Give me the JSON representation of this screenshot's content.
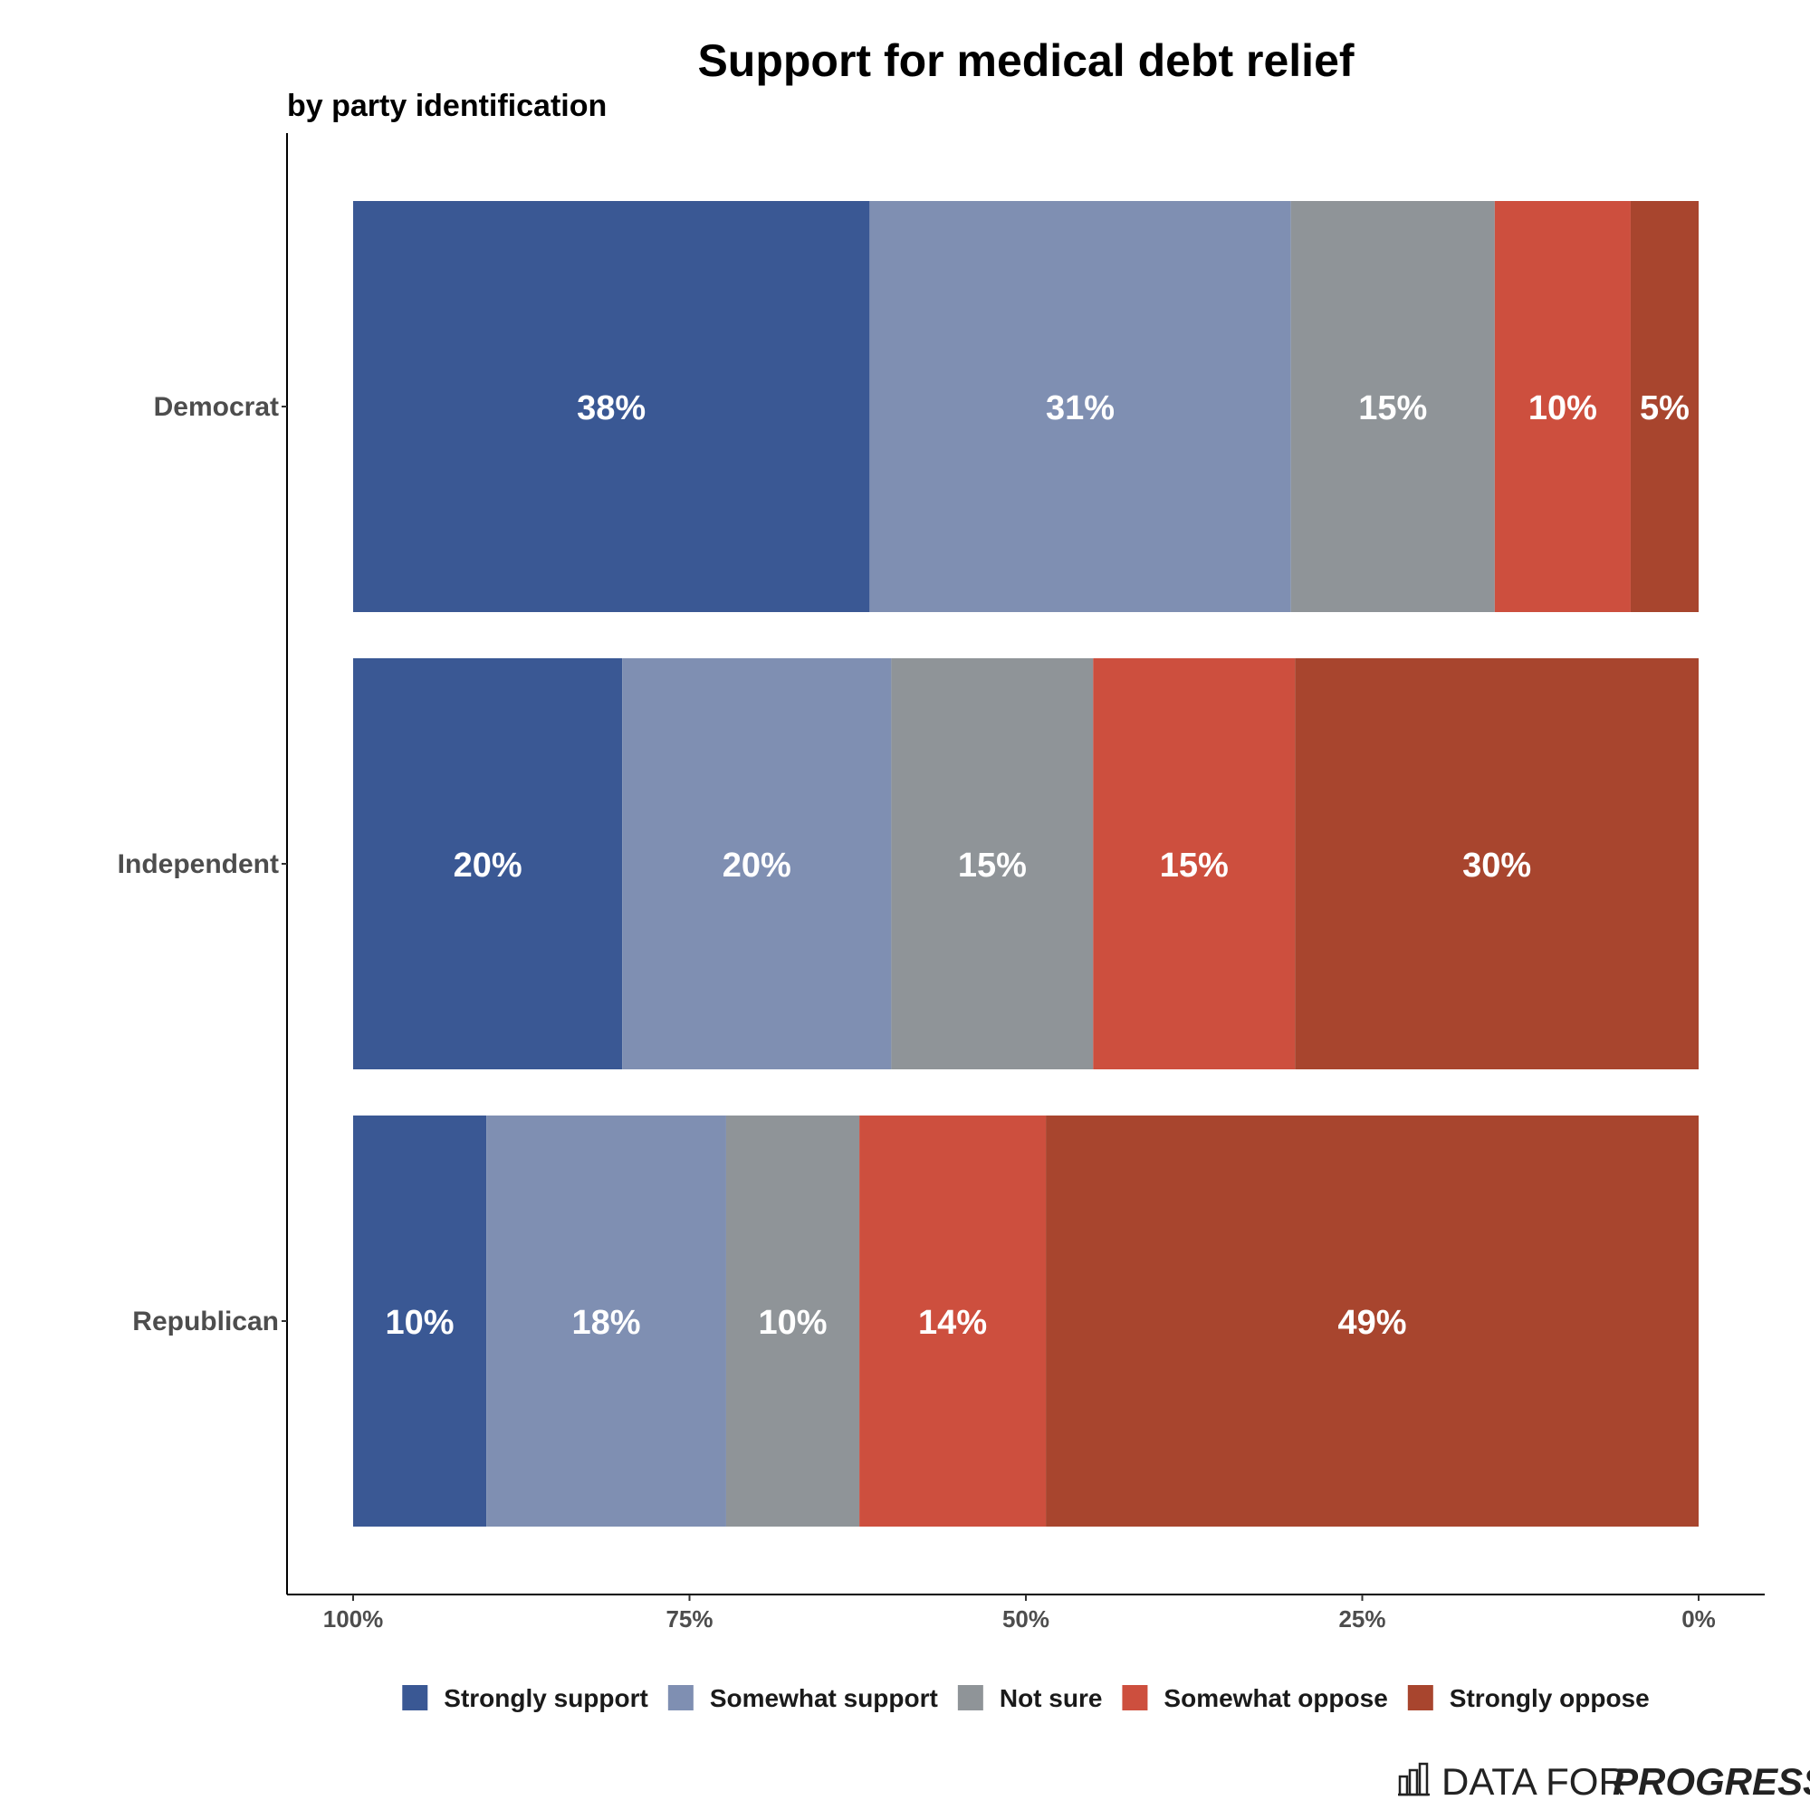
{
  "chart_data": {
    "type": "bar",
    "orientation": "horizontal",
    "stacked": true,
    "title": "Support for medical debt relief",
    "subtitle": "by party identification",
    "categories": [
      "Democrat",
      "Independent",
      "Republican"
    ],
    "series": [
      {
        "name": "Strongly support",
        "color": "#3a5894",
        "values": [
          38,
          20,
          10
        ]
      },
      {
        "name": "Somewhat support",
        "color": "#7f8fb2",
        "values": [
          31,
          20,
          18
        ]
      },
      {
        "name": "Not sure",
        "color": "#8f9498",
        "values": [
          15,
          15,
          10
        ]
      },
      {
        "name": "Somewhat oppose",
        "color": "#cd4f3e",
        "values": [
          10,
          15,
          14
        ]
      },
      {
        "name": "Strongly oppose",
        "color": "#a8452e",
        "values": [
          5,
          30,
          49
        ]
      }
    ],
    "xlabel": "",
    "ylabel": "",
    "xlim": [
      100,
      0
    ],
    "x_ticks": [
      "100%",
      "75%",
      "50%",
      "25%",
      "0%"
    ],
    "x_tick_values": [
      100,
      75,
      50,
      25,
      0
    ],
    "grid": false,
    "legend_position": "bottom"
  },
  "branding": {
    "logo_text_regular": "DATA FOR",
    "logo_text_bold": "PROGRESS",
    "logo_icon": "bar-chart-icon"
  }
}
